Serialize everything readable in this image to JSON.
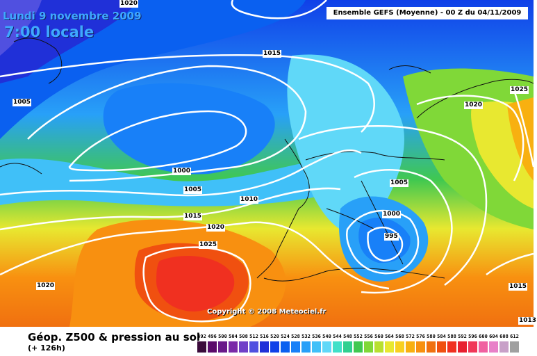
{
  "header": {
    "date": "Lundi 9 novembre 2009",
    "time": "7:00 locale",
    "model": "Ensemble GEFS (Moyenne)  - 00 Z du 04/11/2009"
  },
  "copyright": "Copyright © 2008 Meteociel.fr",
  "footer": {
    "title": "Géop. Z500 & pression au sol",
    "subtitle": "(+ 126h)"
  },
  "isobars": [
    "1020",
    "1015",
    "1005",
    "1000",
    "1005",
    "1010",
    "1015",
    "1020",
    "1025",
    "1020",
    "1000",
    "995",
    "1005",
    "1020",
    "1025",
    "1015",
    "1013"
  ],
  "scale": {
    "labels": [
      "492",
      "496",
      "500",
      "504",
      "508",
      "512",
      "516",
      "520",
      "524",
      "528",
      "532",
      "536",
      "540",
      "544",
      "548",
      "552",
      "556",
      "560",
      "564",
      "568",
      "572",
      "576",
      "580",
      "584",
      "588",
      "592",
      "596",
      "600",
      "604",
      "608",
      "612"
    ],
    "colors": [
      "#3a0a3a",
      "#5a0a6a",
      "#6a1a8a",
      "#7a2aa8",
      "#7040c8",
      "#5050e0",
      "#2030d8",
      "#1040e8",
      "#0a60f0",
      "#1880f8",
      "#28a0f8",
      "#40c0f8",
      "#60d8f8",
      "#40e0c8",
      "#30d090",
      "#40c850",
      "#80d838",
      "#b8e030",
      "#e8e830",
      "#f8d020",
      "#f8b010",
      "#f89010",
      "#f07010",
      "#f05010",
      "#f03020",
      "#e82030",
      "#f03858",
      "#f060a0",
      "#e880c8",
      "#c8a0c8",
      "#a0a0a0"
    ]
  }
}
